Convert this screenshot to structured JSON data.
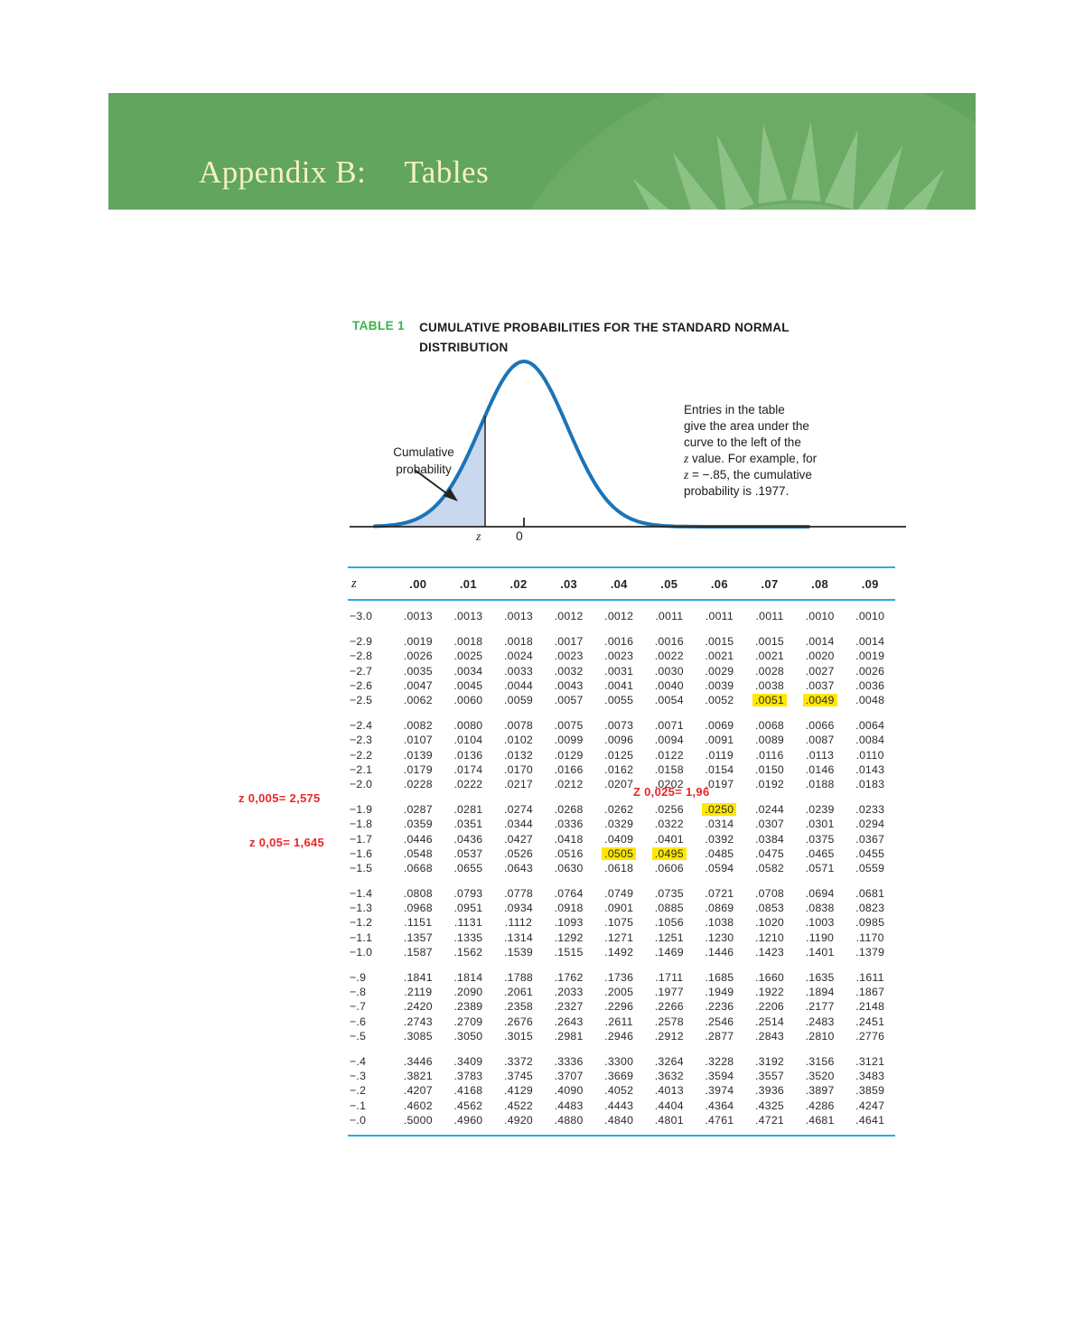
{
  "banner": {
    "title_part1": "Appendix B:",
    "title_part2": "Tables"
  },
  "caption": {
    "label": "TABLE 1",
    "title_line1": "CUMULATIVE PROBABILITIES FOR THE STANDARD NORMAL",
    "title_line2": "DISTRIBUTION"
  },
  "figure": {
    "shaded_label_line1": "Cumulative",
    "shaded_label_line2": "probability",
    "axis_z": "z",
    "axis_zero": "0",
    "note_lines": [
      "Entries in the table",
      "give the area under the",
      "curve to the left of the",
      "z value. For example, for",
      "z = −.85, the cumulative",
      "probability is .1977."
    ]
  },
  "annotations": {
    "z005": "z 0,005= 2,575",
    "z05": "z 0,05= 1,645",
    "z025": "Z 0,025= 1,96"
  },
  "colors": {
    "banner_green": "#61a55f",
    "banner_pattern_light": "#8dc286",
    "banner_title_cream": "#f5f1c3",
    "table_label_green": "#3cb24a",
    "rule_blue": "#29abe2",
    "curve_blue": "#1b74b8",
    "shade_fill": "#c9d8ef",
    "highlight_yellow": "#ffe700",
    "annotation_red": "#e9262b"
  },
  "table": {
    "header": [
      "z",
      ".00",
      ".01",
      ".02",
      ".03",
      ".04",
      ".05",
      ".06",
      ".07",
      ".08",
      ".09"
    ],
    "groups": [
      [
        {
          "z": "−3.0",
          "v": [
            ".0013",
            ".0013",
            ".0013",
            ".0012",
            ".0012",
            ".0011",
            ".0011",
            ".0011",
            ".0010",
            ".0010"
          ]
        }
      ],
      [
        {
          "z": "−2.9",
          "v": [
            ".0019",
            ".0018",
            ".0018",
            ".0017",
            ".0016",
            ".0016",
            ".0015",
            ".0015",
            ".0014",
            ".0014"
          ]
        },
        {
          "z": "−2.8",
          "v": [
            ".0026",
            ".0025",
            ".0024",
            ".0023",
            ".0023",
            ".0022",
            ".0021",
            ".0021",
            ".0020",
            ".0019"
          ]
        },
        {
          "z": "−2.7",
          "v": [
            ".0035",
            ".0034",
            ".0033",
            ".0032",
            ".0031",
            ".0030",
            ".0029",
            ".0028",
            ".0027",
            ".0026"
          ]
        },
        {
          "z": "−2.6",
          "v": [
            ".0047",
            ".0045",
            ".0044",
            ".0043",
            ".0041",
            ".0040",
            ".0039",
            ".0038",
            ".0037",
            ".0036"
          ]
        },
        {
          "z": "−2.5",
          "v": [
            ".0062",
            ".0060",
            ".0059",
            ".0057",
            ".0055",
            ".0054",
            ".0052",
            ".0051",
            ".0049",
            ".0048"
          ],
          "hl": [
            7,
            8
          ]
        }
      ],
      [
        {
          "z": "−2.4",
          "v": [
            ".0082",
            ".0080",
            ".0078",
            ".0075",
            ".0073",
            ".0071",
            ".0069",
            ".0068",
            ".0066",
            ".0064"
          ]
        },
        {
          "z": "−2.3",
          "v": [
            ".0107",
            ".0104",
            ".0102",
            ".0099",
            ".0096",
            ".0094",
            ".0091",
            ".0089",
            ".0087",
            ".0084"
          ]
        },
        {
          "z": "−2.2",
          "v": [
            ".0139",
            ".0136",
            ".0132",
            ".0129",
            ".0125",
            ".0122",
            ".0119",
            ".0116",
            ".0113",
            ".0110"
          ]
        },
        {
          "z": "−2.1",
          "v": [
            ".0179",
            ".0174",
            ".0170",
            ".0166",
            ".0162",
            ".0158",
            ".0154",
            ".0150",
            ".0146",
            ".0143"
          ]
        },
        {
          "z": "−2.0",
          "v": [
            ".0228",
            ".0222",
            ".0217",
            ".0212",
            ".0207",
            ".0202",
            ".0197",
            ".0192",
            ".0188",
            ".0183"
          ]
        }
      ],
      [
        {
          "z": "−1.9",
          "v": [
            ".0287",
            ".0281",
            ".0274",
            ".0268",
            ".0262",
            ".0256",
            ".0250",
            ".0244",
            ".0239",
            ".0233"
          ],
          "hl": [
            6
          ]
        },
        {
          "z": "−1.8",
          "v": [
            ".0359",
            ".0351",
            ".0344",
            ".0336",
            ".0329",
            ".0322",
            ".0314",
            ".0307",
            ".0301",
            ".0294"
          ]
        },
        {
          "z": "−1.7",
          "v": [
            ".0446",
            ".0436",
            ".0427",
            ".0418",
            ".0409",
            ".0401",
            ".0392",
            ".0384",
            ".0375",
            ".0367"
          ]
        },
        {
          "z": "−1.6",
          "v": [
            ".0548",
            ".0537",
            ".0526",
            ".0516",
            ".0505",
            ".0495",
            ".0485",
            ".0475",
            ".0465",
            ".0455"
          ],
          "hl": [
            4,
            5
          ]
        },
        {
          "z": "−1.5",
          "v": [
            ".0668",
            ".0655",
            ".0643",
            ".0630",
            ".0618",
            ".0606",
            ".0594",
            ".0582",
            ".0571",
            ".0559"
          ]
        }
      ],
      [
        {
          "z": "−1.4",
          "v": [
            ".0808",
            ".0793",
            ".0778",
            ".0764",
            ".0749",
            ".0735",
            ".0721",
            ".0708",
            ".0694",
            ".0681"
          ]
        },
        {
          "z": "−1.3",
          "v": [
            ".0968",
            ".0951",
            ".0934",
            ".0918",
            ".0901",
            ".0885",
            ".0869",
            ".0853",
            ".0838",
            ".0823"
          ]
        },
        {
          "z": "−1.2",
          "v": [
            ".1151",
            ".1131",
            ".1112",
            ".1093",
            ".1075",
            ".1056",
            ".1038",
            ".1020",
            ".1003",
            ".0985"
          ]
        },
        {
          "z": "−1.1",
          "v": [
            ".1357",
            ".1335",
            ".1314",
            ".1292",
            ".1271",
            ".1251",
            ".1230",
            ".1210",
            ".1190",
            ".1170"
          ]
        },
        {
          "z": "−1.0",
          "v": [
            ".1587",
            ".1562",
            ".1539",
            ".1515",
            ".1492",
            ".1469",
            ".1446",
            ".1423",
            ".1401",
            ".1379"
          ]
        }
      ],
      [
        {
          "z": "−.9",
          "v": [
            ".1841",
            ".1814",
            ".1788",
            ".1762",
            ".1736",
            ".1711",
            ".1685",
            ".1660",
            ".1635",
            ".1611"
          ]
        },
        {
          "z": "−.8",
          "v": [
            ".2119",
            ".2090",
            ".2061",
            ".2033",
            ".2005",
            ".1977",
            ".1949",
            ".1922",
            ".1894",
            ".1867"
          ]
        },
        {
          "z": "−.7",
          "v": [
            ".2420",
            ".2389",
            ".2358",
            ".2327",
            ".2296",
            ".2266",
            ".2236",
            ".2206",
            ".2177",
            ".2148"
          ]
        },
        {
          "z": "−.6",
          "v": [
            ".2743",
            ".2709",
            ".2676",
            ".2643",
            ".2611",
            ".2578",
            ".2546",
            ".2514",
            ".2483",
            ".2451"
          ]
        },
        {
          "z": "−.5",
          "v": [
            ".3085",
            ".3050",
            ".3015",
            ".2981",
            ".2946",
            ".2912",
            ".2877",
            ".2843",
            ".2810",
            ".2776"
          ]
        }
      ],
      [
        {
          "z": "−.4",
          "v": [
            ".3446",
            ".3409",
            ".3372",
            ".3336",
            ".3300",
            ".3264",
            ".3228",
            ".3192",
            ".3156",
            ".3121"
          ]
        },
        {
          "z": "−.3",
          "v": [
            ".3821",
            ".3783",
            ".3745",
            ".3707",
            ".3669",
            ".3632",
            ".3594",
            ".3557",
            ".3520",
            ".3483"
          ]
        },
        {
          "z": "−.2",
          "v": [
            ".4207",
            ".4168",
            ".4129",
            ".4090",
            ".4052",
            ".4013",
            ".3974",
            ".3936",
            ".3897",
            ".3859"
          ]
        },
        {
          "z": "−.1",
          "v": [
            ".4602",
            ".4562",
            ".4522",
            ".4483",
            ".4443",
            ".4404",
            ".4364",
            ".4325",
            ".4286",
            ".4247"
          ]
        },
        {
          "z": "−.0",
          "v": [
            ".5000",
            ".4960",
            ".4920",
            ".4880",
            ".4840",
            ".4801",
            ".4761",
            ".4721",
            ".4681",
            ".4641"
          ]
        }
      ]
    ]
  }
}
